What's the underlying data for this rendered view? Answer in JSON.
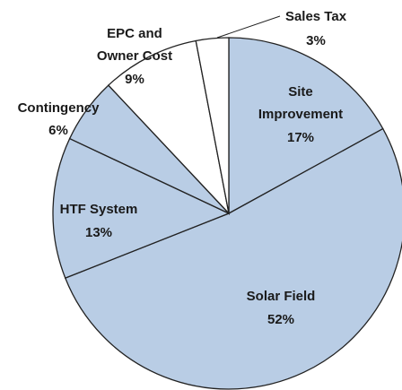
{
  "chart_data": {
    "type": "pie",
    "categories": [
      "Site Improvement",
      "Solar Field",
      "HTF System",
      "Contingency",
      "EPC and Owner Cost",
      "Sales Tax"
    ],
    "values": [
      17,
      52,
      13,
      6,
      9,
      3
    ],
    "value_labels": [
      "17%",
      "52%",
      "13%",
      "6%",
      "9%",
      "3%"
    ],
    "colors": [
      "#b9cde5",
      "#b9cde5",
      "#b9cde5",
      "#b9cde5",
      "#ffffff",
      "#ffffff"
    ]
  }
}
